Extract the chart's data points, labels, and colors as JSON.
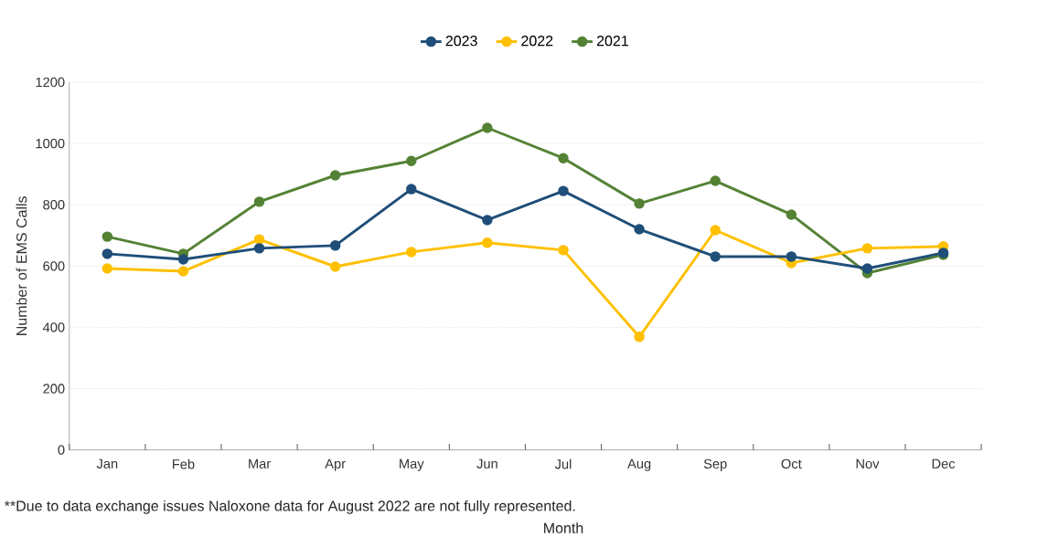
{
  "chart_data": {
    "type": "line",
    "ylabel": "Number of EMS Calls",
    "xlabel": "Month",
    "categories": [
      "Jan",
      "Feb",
      "Mar",
      "Apr",
      "May",
      "Jun",
      "Jul",
      "Aug",
      "Sep",
      "Oct",
      "Nov",
      "Dec"
    ],
    "series": [
      {
        "name": "2023",
        "color": "#1f4e79",
        "values": [
          640,
          622,
          658,
          667,
          851,
          750,
          845,
          720,
          631,
          631,
          592,
          643
        ]
      },
      {
        "name": "2022",
        "color": "#ffc000",
        "values": [
          592,
          583,
          687,
          598,
          646,
          676,
          652,
          369,
          717,
          610,
          658,
          664
        ]
      },
      {
        "name": "2021",
        "color": "#548235",
        "values": [
          696,
          640,
          810,
          896,
          943,
          1051,
          952,
          804,
          878,
          768,
          577,
          637
        ]
      }
    ],
    "ylim": [
      0,
      1200
    ],
    "yticks": [
      0,
      200,
      400,
      600,
      800,
      1000,
      1200
    ],
    "grid": "y",
    "legend": "top",
    "marker": "circle",
    "line_style": "solid",
    "annotations": [
      "**Due to data exchange issues Naloxone data for August 2022 are not fully represented."
    ]
  }
}
